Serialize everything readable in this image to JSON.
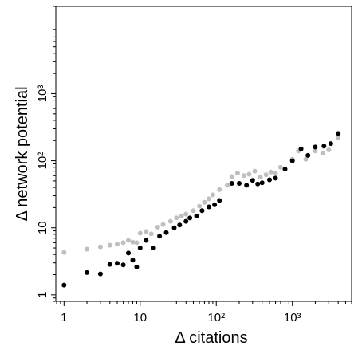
{
  "chart_data": {
    "type": "scatter",
    "xlabel": "Δ citations",
    "ylabel": "Δ network potential",
    "x_scale": "log",
    "y_scale": "log",
    "xlim": [
      0.78,
      6000
    ],
    "ylim": [
      0.8,
      20000
    ],
    "x_ticks": [
      {
        "value": 1,
        "label": "1"
      },
      {
        "value": 10,
        "label": "10"
      },
      {
        "value": 100,
        "label": "10²"
      },
      {
        "value": 1000,
        "label": "10³"
      }
    ],
    "y_ticks": [
      {
        "value": 1,
        "label": "1"
      },
      {
        "value": 10,
        "label": "10"
      },
      {
        "value": 100,
        "label": "10²"
      },
      {
        "value": 1000,
        "label": "10³"
      }
    ],
    "grid": false,
    "series": [
      {
        "color": "#bfbfbf",
        "points": [
          [
            1,
            4.3
          ],
          [
            2,
            4.8
          ],
          [
            3,
            5.2
          ],
          [
            4,
            5.5
          ],
          [
            5,
            5.7
          ],
          [
            6,
            6.0
          ],
          [
            7,
            6.5
          ],
          [
            8,
            6.1
          ],
          [
            9,
            6.0
          ],
          [
            10,
            8.3
          ],
          [
            12,
            8.8
          ],
          [
            14,
            8.1
          ],
          [
            17,
            10.2
          ],
          [
            20,
            11.2
          ],
          [
            25,
            12.5
          ],
          [
            30,
            14.1
          ],
          [
            35,
            15.0
          ],
          [
            40,
            16.0
          ],
          [
            50,
            18.0
          ],
          [
            60,
            21.0
          ],
          [
            70,
            24.0
          ],
          [
            80,
            27.0
          ],
          [
            90,
            31.0
          ],
          [
            110,
            37.0
          ],
          [
            140,
            43.0
          ],
          [
            160,
            58.0
          ],
          [
            190,
            65.0
          ],
          [
            230,
            60.0
          ],
          [
            270,
            63.0
          ],
          [
            320,
            70.0
          ],
          [
            380,
            57.0
          ],
          [
            450,
            62.0
          ],
          [
            520,
            68.0
          ],
          [
            600,
            65.0
          ],
          [
            700,
            80.0
          ],
          [
            1000,
            105.0
          ],
          [
            1200,
            140.0
          ],
          [
            1500,
            105.0
          ],
          [
            2000,
            140.0
          ],
          [
            2500,
            130.0
          ],
          [
            3000,
            145.0
          ],
          [
            4000,
            220.0
          ]
        ]
      },
      {
        "color": "#000000",
        "points": [
          [
            1,
            1.4
          ],
          [
            2,
            2.15
          ],
          [
            3,
            2.05
          ],
          [
            4,
            2.85
          ],
          [
            5,
            2.95
          ],
          [
            6,
            2.8
          ],
          [
            7,
            4.2
          ],
          [
            8,
            3.3
          ],
          [
            9,
            2.6
          ],
          [
            10,
            5.0
          ],
          [
            12,
            6.5
          ],
          [
            15,
            5.0
          ],
          [
            18,
            7.5
          ],
          [
            22,
            8.5
          ],
          [
            28,
            10.0
          ],
          [
            33,
            11.0
          ],
          [
            40,
            12.5
          ],
          [
            45,
            14.0
          ],
          [
            55,
            15.0
          ],
          [
            65,
            18.0
          ],
          [
            80,
            20.5
          ],
          [
            95,
            22.0
          ],
          [
            110,
            25.5
          ],
          [
            160,
            46.0
          ],
          [
            200,
            46.0
          ],
          [
            250,
            43.0
          ],
          [
            300,
            51.0
          ],
          [
            350,
            45.0
          ],
          [
            400,
            47.0
          ],
          [
            500,
            52.0
          ],
          [
            600,
            55.0
          ],
          [
            800,
            75.0
          ],
          [
            1000,
            100.0
          ],
          [
            1300,
            150.0
          ],
          [
            1600,
            120.0
          ],
          [
            2000,
            160.0
          ],
          [
            2600,
            165.0
          ],
          [
            3200,
            180.0
          ],
          [
            4000,
            255.0
          ]
        ]
      }
    ]
  }
}
